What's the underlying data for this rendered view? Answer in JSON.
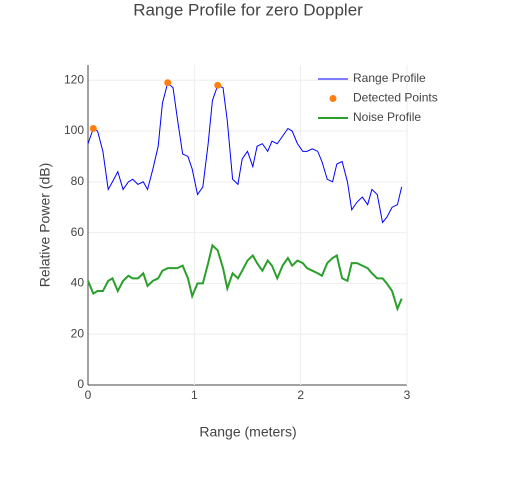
{
  "chart_data": {
    "type": "line",
    "title": "Range Profile for zero Doppler",
    "x_label": "Range (meters)",
    "y_label": "Relative Power (dB)",
    "xlim": [
      0,
      3
    ],
    "xticks": [
      0,
      1,
      2,
      3
    ],
    "ylim": [
      0,
      126
    ],
    "yticks": [
      0,
      20,
      40,
      60,
      80,
      100,
      120
    ],
    "grid": true,
    "legend": "top-right",
    "series": [
      {
        "name": "Range Profile",
        "mode": "line",
        "color": "#0000ff",
        "x": [
          0,
          0.05,
          0.09,
          0.14,
          0.19,
          0.23,
          0.28,
          0.33,
          0.38,
          0.42,
          0.47,
          0.52,
          0.56,
          0.61,
          0.66,
          0.7,
          0.75,
          0.8,
          0.84,
          0.89,
          0.94,
          0.98,
          1.03,
          1.08,
          1.13,
          1.17,
          1.22,
          1.27,
          1.31,
          1.36,
          1.41,
          1.45,
          1.5,
          1.55,
          1.59,
          1.64,
          1.69,
          1.73,
          1.78,
          1.83,
          1.88,
          1.92,
          1.97,
          2.02,
          2.06,
          2.11,
          2.16,
          2.2,
          2.25,
          2.3,
          2.34,
          2.39,
          2.44,
          2.48,
          2.53,
          2.58,
          2.63,
          2.67,
          2.72,
          2.77,
          2.81,
          2.86,
          2.91,
          2.95
        ],
        "values": [
          95,
          101,
          100,
          92,
          77,
          80,
          84,
          77,
          80,
          81,
          79,
          80,
          77,
          85,
          94,
          111,
          119,
          117,
          105,
          91,
          90,
          85,
          75,
          78,
          95,
          112,
          118,
          117,
          104,
          81,
          79,
          89,
          92,
          86,
          94,
          95,
          92,
          96,
          95,
          98,
          101,
          100,
          95,
          92,
          92,
          93,
          92,
          88,
          81,
          80,
          87,
          88,
          80,
          69,
          72,
          74,
          71,
          77,
          75,
          64,
          66,
          70,
          71,
          78
        ]
      },
      {
        "name": "Detected Points",
        "mode": "markers",
        "color": "#ff7f0e",
        "x": [
          0.05,
          0.75,
          1.22
        ],
        "values": [
          101,
          119,
          118
        ]
      },
      {
        "name": "Noise Profile",
        "mode": "line",
        "color": "#2ca02c",
        "x": [
          0,
          0.05,
          0.09,
          0.14,
          0.19,
          0.23,
          0.28,
          0.33,
          0.38,
          0.42,
          0.47,
          0.52,
          0.56,
          0.61,
          0.66,
          0.7,
          0.75,
          0.8,
          0.84,
          0.89,
          0.94,
          0.98,
          1.03,
          1.08,
          1.13,
          1.17,
          1.22,
          1.27,
          1.31,
          1.36,
          1.41,
          1.45,
          1.5,
          1.55,
          1.59,
          1.64,
          1.69,
          1.73,
          1.78,
          1.83,
          1.88,
          1.92,
          1.97,
          2.02,
          2.06,
          2.11,
          2.16,
          2.2,
          2.25,
          2.3,
          2.34,
          2.39,
          2.44,
          2.48,
          2.53,
          2.58,
          2.63,
          2.67,
          2.72,
          2.77,
          2.81,
          2.86,
          2.91,
          2.95
        ],
        "values": [
          41,
          36,
          37,
          37,
          41,
          42,
          37,
          41,
          43,
          42,
          42,
          44,
          39,
          41,
          42,
          45,
          46,
          46,
          46,
          47,
          42,
          35,
          40,
          40,
          48,
          55,
          53,
          46,
          38,
          44,
          42,
          45,
          49,
          51,
          48,
          45,
          49,
          47,
          42,
          47,
          50,
          47,
          49,
          48,
          46,
          45,
          44,
          43,
          48,
          50,
          51,
          42,
          41,
          48,
          48,
          47,
          46,
          44,
          42,
          42,
          40,
          37,
          30,
          34
        ]
      }
    ]
  }
}
